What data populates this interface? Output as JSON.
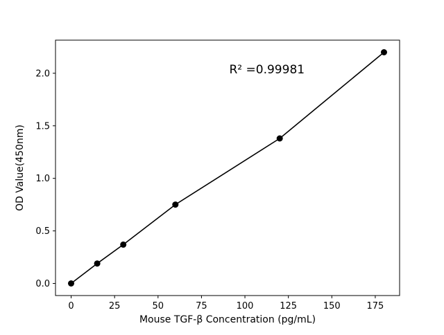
{
  "chart_data": {
    "type": "scatter",
    "x": [
      0,
      15,
      30,
      60,
      120,
      180
    ],
    "y": [
      0.0,
      0.19,
      0.37,
      0.75,
      1.38,
      2.2
    ],
    "title": "",
    "xlabel": "Mouse TGF-β  Concentration (pg/mL)",
    "ylabel": "OD Value(450nm)",
    "xlim": [
      -9,
      189
    ],
    "ylim": [
      -0.115,
      2.315
    ],
    "x_ticks": [
      0,
      25,
      50,
      75,
      100,
      125,
      150,
      175
    ],
    "x_tick_labels": [
      "0",
      "25",
      "50",
      "75",
      "100",
      "125",
      "150",
      "175"
    ],
    "y_ticks": [
      0.0,
      0.5,
      1.0,
      1.5,
      2.0
    ],
    "y_tick_labels": [
      "0.0",
      "0.5",
      "1.0",
      "1.5",
      "2.0"
    ],
    "annotation": {
      "text": "R² =0.99981",
      "x": 91,
      "y": 2.0
    },
    "grid": false,
    "legend": "none",
    "line": true,
    "marker_color": "#000000",
    "line_color": "#000000",
    "background_color": "#ffffff"
  }
}
